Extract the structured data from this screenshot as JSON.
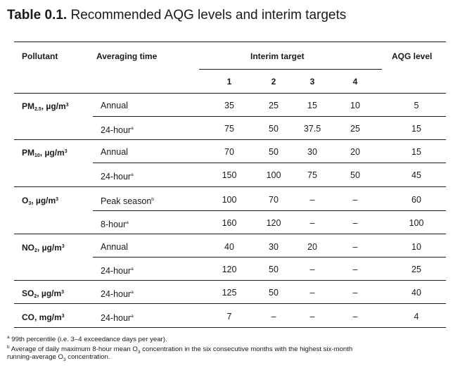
{
  "title": {
    "prefix": "Table 0.1.",
    "text": "Recommended AQG levels and interim targets"
  },
  "headers": {
    "pollutant": "Pollutant",
    "averaging_time": "Averaging time",
    "interim_target": "Interim target",
    "aqg_level": "AQG level",
    "it_numbers": [
      "1",
      "2",
      "3",
      "4"
    ]
  },
  "rows": [
    {
      "pollutant_main": "PM",
      "pollutant_sub": "2.5",
      "pollutant_unit": ", µg/m",
      "pollutant_unit_sup": "3",
      "time": "Annual",
      "time_mark": "",
      "values": [
        "35",
        "25",
        "15",
        "10"
      ],
      "aqg": "5"
    },
    {
      "pollutant_main": "",
      "pollutant_sub": "",
      "pollutant_unit": "",
      "pollutant_unit_sup": "",
      "time": "24-hour",
      "time_mark": "a",
      "values": [
        "75",
        "50",
        "37.5",
        "25"
      ],
      "aqg": "15"
    },
    {
      "pollutant_main": "PM",
      "pollutant_sub": "10",
      "pollutant_unit": ", µg/m",
      "pollutant_unit_sup": "3",
      "time": "Annual",
      "time_mark": "",
      "values": [
        "70",
        "50",
        "30",
        "20"
      ],
      "aqg": "15"
    },
    {
      "pollutant_main": "",
      "pollutant_sub": "",
      "pollutant_unit": "",
      "pollutant_unit_sup": "",
      "time": "24-hour",
      "time_mark": "a",
      "values": [
        "150",
        "100",
        "75",
        "50"
      ],
      "aqg": "45"
    },
    {
      "pollutant_main": "O",
      "pollutant_sub": "3",
      "pollutant_unit": ", µg/m",
      "pollutant_unit_sup": "3",
      "time": "Peak season",
      "time_mark": "b",
      "values": [
        "100",
        "70",
        "–",
        "–"
      ],
      "aqg": "60"
    },
    {
      "pollutant_main": "",
      "pollutant_sub": "",
      "pollutant_unit": "",
      "pollutant_unit_sup": "",
      "time": "8-hour",
      "time_mark": "a",
      "values": [
        "160",
        "120",
        "–",
        "–"
      ],
      "aqg": "100"
    },
    {
      "pollutant_main": "NO",
      "pollutant_sub": "2",
      "pollutant_unit": ", µg/m",
      "pollutant_unit_sup": "3",
      "time": "Annual",
      "time_mark": "",
      "values": [
        "40",
        "30",
        "20",
        "–"
      ],
      "aqg": "10"
    },
    {
      "pollutant_main": "",
      "pollutant_sub": "",
      "pollutant_unit": "",
      "pollutant_unit_sup": "",
      "time": "24-hour",
      "time_mark": "a",
      "values": [
        "120",
        "50",
        "–",
        "–"
      ],
      "aqg": "25"
    },
    {
      "pollutant_main": "SO",
      "pollutant_sub": "2",
      "pollutant_unit": ", µg/m",
      "pollutant_unit_sup": "3",
      "time": "24-hour",
      "time_mark": "a",
      "values": [
        "125",
        "50",
        "–",
        "–"
      ],
      "aqg": "40"
    },
    {
      "pollutant_main": "CO, mg/m",
      "pollutant_sub": "",
      "pollutant_unit": "",
      "pollutant_unit_sup": "3",
      "time": "24-hour",
      "time_mark": "a",
      "values": [
        "7",
        "–",
        "–",
        "–"
      ],
      "aqg": "4"
    }
  ],
  "footnotes": {
    "a_mark": "a",
    "a_text": " 99th percentile (i.e. 3–4 exceedance days per year).",
    "b_mark": "b",
    "b_text_1": " Average of daily maximum 8-hour mean O",
    "b_sub_1": "3",
    "b_text_2": " concentration in the six consecutive months with the highest six-month",
    "b_line2_1": "running-average O",
    "b_sub_2": "3",
    "b_line2_2": " concentration."
  }
}
